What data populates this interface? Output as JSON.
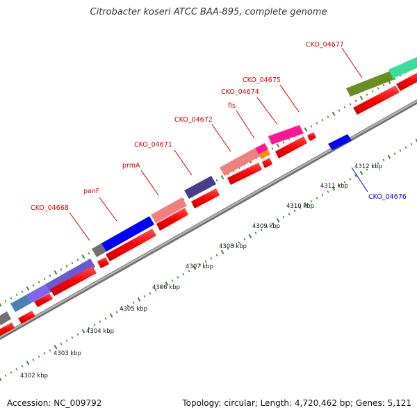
{
  "title": "Citrobacter koseri ATCC BAA-895, complete genome",
  "footer": {
    "accession": "Accession: NC_009792",
    "summary": "Topology: circular; Length: 4,720,462 bp; Genes: 5,121"
  },
  "colors": {
    "backbone": "#999999",
    "tick": "#2e8b2e",
    "cds": "#ff0000",
    "label_forward": "#cc0000",
    "label_reverse": "#0000cc"
  },
  "scale_labels": [
    "4302 kbp",
    "4303 kbp",
    "4304 kbp",
    "4305 kbp",
    "4306 kbp",
    "4307 kbp",
    "4308 kbp",
    "4309 kbp",
    "4310 kbp",
    "4311 kbp",
    "4312 kbp"
  ],
  "gene_labels": {
    "g04668": "CKO_04668",
    "panF": "panF",
    "prmA": "prmA",
    "g04671": "CKO_04671",
    "g04672": "CKO_04672",
    "fis": "fis",
    "g04674": "CKO_04674",
    "g04675": "CKO_04675",
    "g04676": "CKO_04676",
    "g04677": "CKO_04677"
  }
}
